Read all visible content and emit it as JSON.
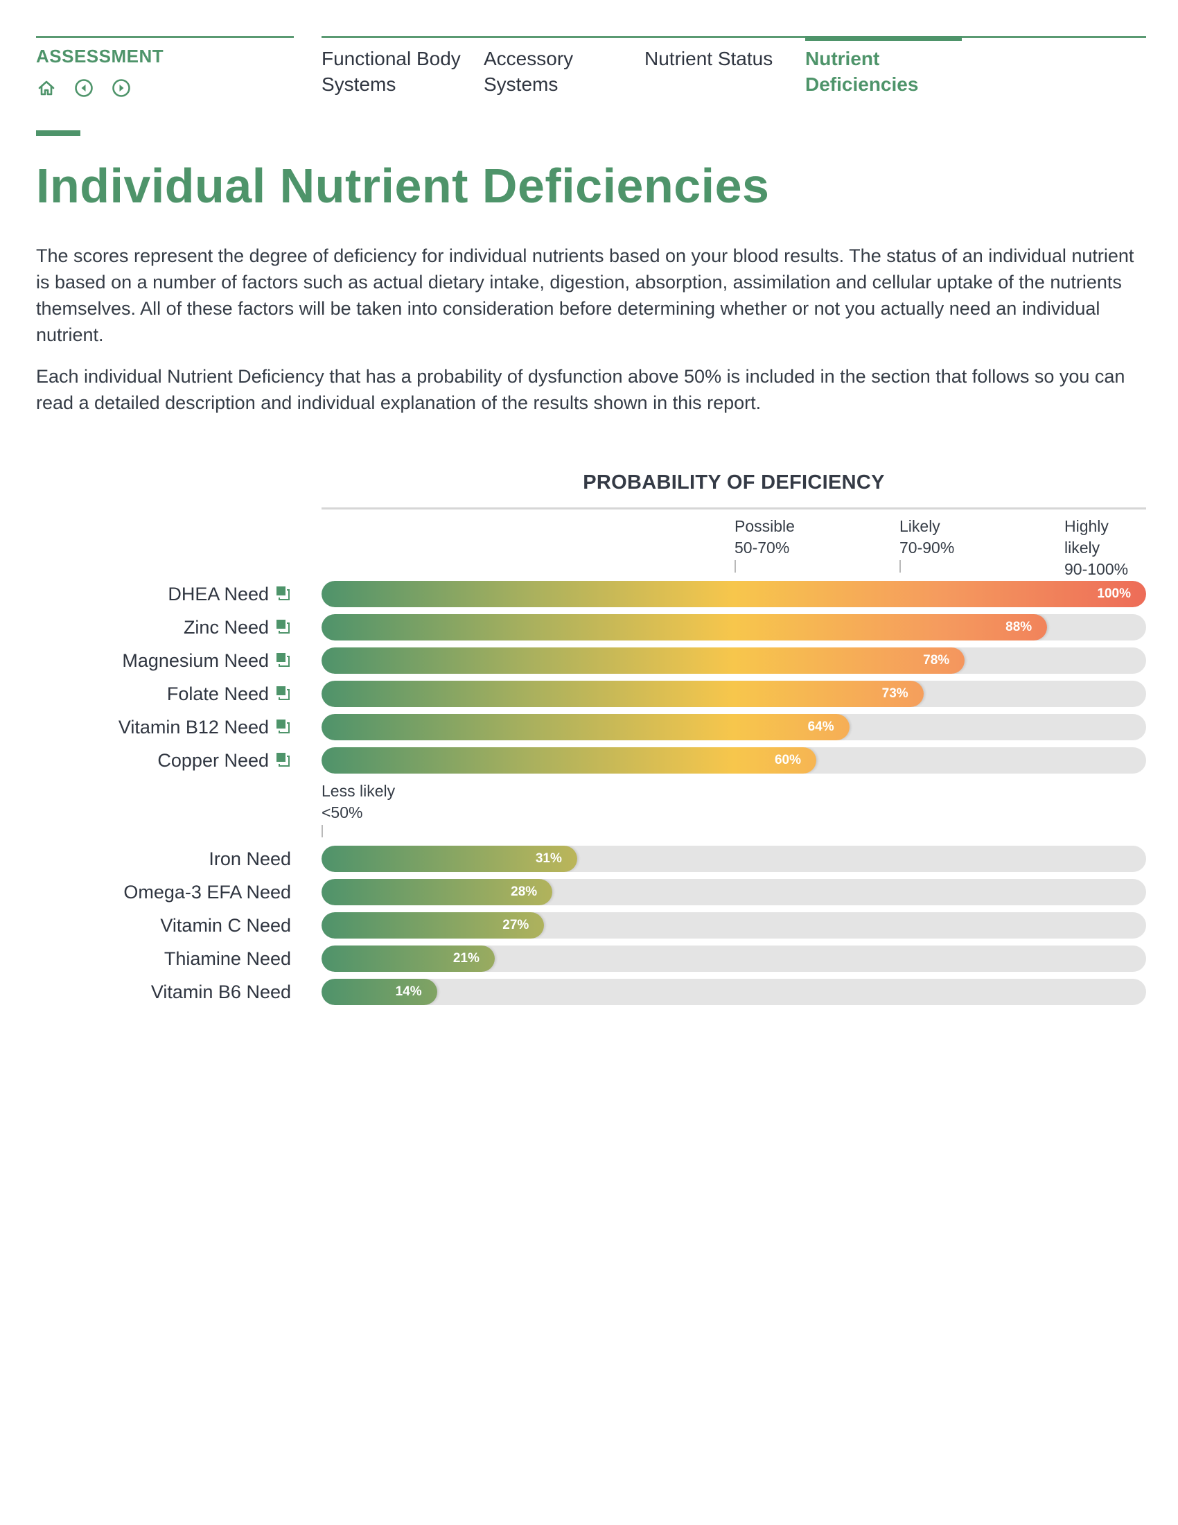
{
  "header": {
    "brand": "ASSESSMENT",
    "nav_icons": [
      "home-icon",
      "previous-icon",
      "next-icon"
    ],
    "tabs": [
      {
        "line1": "Functional Body",
        "line2": "Systems",
        "active": false
      },
      {
        "line1": "Accessory",
        "line2": "Systems",
        "active": false
      },
      {
        "line1": "Nutrient Status",
        "line2": "",
        "active": false
      },
      {
        "line1": "Nutrient",
        "line2": "Deficiencies",
        "active": true
      }
    ]
  },
  "page": {
    "title": "Individual Nutrient Deficiencies",
    "paragraph1": "The scores represent the degree of deficiency for individual nutrients based on your blood results. The status of an individual nutrient is based on a number of factors such as actual dietary intake, digestion, absorption, assimilation and cellular uptake of the nutrients themselves. All of these factors will be taken into consideration before determining whether or not you actually need an individual nutrient.",
    "paragraph2": "Each individual Nutrient Deficiency that has a probability of dysfunction above 50% is included in the section that follows so you can read a detailed description and individual explanation of the results shown in this report."
  },
  "colors": {
    "brand_green": "#4e946a",
    "gradient": [
      "#4f936b",
      "#a8b05e",
      "#f7c64c",
      "#f59b5e",
      "#ed6c58"
    ],
    "track": "#e4e4e4"
  },
  "chart_data": {
    "type": "bar",
    "orientation": "horizontal",
    "title": "PROBABILITY OF DEFICIENCY",
    "xlim": [
      0,
      100
    ],
    "unit": "%",
    "zones": [
      {
        "name": "Possible",
        "range": "50-70%",
        "start": 50
      },
      {
        "name": "Likely",
        "range": "70-90%",
        "start": 70
      },
      {
        "name": "Highly likely",
        "range": "90-100%",
        "start": 90
      },
      {
        "name": "Less likely",
        "range": "<50%",
        "start": 0
      }
    ],
    "groups": [
      {
        "name": "above-50",
        "categories": [
          "DHEA Need",
          "Zinc Need",
          "Magnesium Need",
          "Folate Need",
          "Vitamin B12 Need",
          "Copper Need"
        ],
        "values": [
          100,
          88,
          78,
          73,
          64,
          60
        ],
        "labels": [
          "100%",
          "88%",
          "78%",
          "73%",
          "64%",
          "60%"
        ]
      },
      {
        "name": "below-50",
        "categories": [
          "Iron Need",
          "Omega-3 EFA Need",
          "Vitamin C Need",
          "Thiamine Need",
          "Vitamin B6 Need"
        ],
        "values": [
          31,
          28,
          27,
          21,
          14
        ],
        "labels": [
          "31%",
          "28%",
          "27%",
          "21%",
          "14%"
        ]
      }
    ]
  }
}
